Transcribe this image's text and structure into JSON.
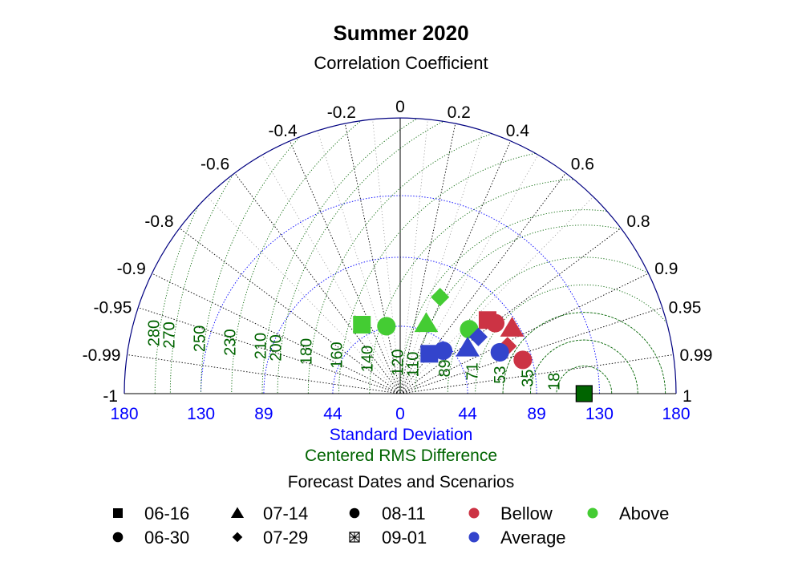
{
  "chart_data": {
    "type": "scatter",
    "subtype": "taylor-diagram",
    "title": "Summer 2020",
    "subtitle": "Correlation Coefficient",
    "xlabel": "Standard Deviation",
    "xlabel2": "Centered RMS Difference",
    "reference": {
      "sd": 120,
      "marker": "square",
      "color": "#006400"
    },
    "sd_ticks": [
      -180,
      -130,
      -89,
      -44,
      0,
      44,
      89,
      130,
      180
    ],
    "sd_tick_labels": [
      "180",
      "130",
      "89",
      "44",
      "0",
      "44",
      "89",
      "130",
      "180"
    ],
    "sd_max": 180,
    "sd_circles": [
      44,
      89,
      130
    ],
    "corr_ticks_left": [
      {
        "v": -0.2,
        "label": "-0.2"
      },
      {
        "v": -0.4,
        "label": "-0.4"
      },
      {
        "v": -0.6,
        "label": "-0.6"
      },
      {
        "v": -0.8,
        "label": "-0.8"
      },
      {
        "v": -0.9,
        "label": "-0.9"
      },
      {
        "v": -0.95,
        "label": "-0.95"
      },
      {
        "v": -0.99,
        "label": "-0.99"
      },
      {
        "v": -1,
        "label": "-1"
      }
    ],
    "corr_ticks_right": [
      {
        "v": 0,
        "label": "0"
      },
      {
        "v": 0.2,
        "label": "0.2"
      },
      {
        "v": 0.4,
        "label": "0.4"
      },
      {
        "v": 0.6,
        "label": "0.6"
      },
      {
        "v": 0.8,
        "label": "0.8"
      },
      {
        "v": 0.9,
        "label": "0.9"
      },
      {
        "v": 0.95,
        "label": "0.95"
      },
      {
        "v": 0.99,
        "label": "0.99"
      },
      {
        "v": 1,
        "label": "1"
      }
    ],
    "rms_labels": [
      {
        "value": 18,
        "label": "18"
      },
      {
        "value": 35,
        "label": "35"
      },
      {
        "value": 53,
        "label": "53"
      },
      {
        "value": 71,
        "label": "71"
      },
      {
        "value": 89,
        "label": "89"
      },
      {
        "value": 110,
        "label": "110"
      },
      {
        "value": 120,
        "label": "120"
      },
      {
        "value": 140,
        "label": "140"
      },
      {
        "value": 160,
        "label": "160"
      },
      {
        "value": 180,
        "label": "180"
      },
      {
        "value": 200,
        "label": "200"
      },
      {
        "value": 210,
        "label": "210"
      },
      {
        "value": 230,
        "label": "230"
      },
      {
        "value": 250,
        "label": "250"
      },
      {
        "value": 270,
        "label": "270"
      },
      {
        "value": 280,
        "label": "280"
      }
    ],
    "points": [
      {
        "date": "06-16",
        "scenario": "Above",
        "marker": "square",
        "x": -25,
        "y": 45
      },
      {
        "date": "06-30",
        "scenario": "Above",
        "marker": "circle",
        "x": -9,
        "y": 44
      },
      {
        "date": "07-14",
        "scenario": "Above",
        "marker": "triangle",
        "x": 17,
        "y": 46
      },
      {
        "date": "07-29",
        "scenario": "Above",
        "marker": "diamond",
        "x": 26,
        "y": 63
      },
      {
        "date": "08-11",
        "scenario": "Above",
        "marker": "circle",
        "x": 45,
        "y": 42
      },
      {
        "date": "06-16",
        "scenario": "Bellow",
        "marker": "square",
        "x": 57,
        "y": 48
      },
      {
        "date": "06-30",
        "scenario": "Bellow",
        "marker": "circle",
        "x": 62,
        "y": 46
      },
      {
        "date": "07-14",
        "scenario": "Bellow",
        "marker": "triangle",
        "x": 73,
        "y": 43
      },
      {
        "date": "07-29",
        "scenario": "Bellow",
        "marker": "diamond",
        "x": 70,
        "y": 31
      },
      {
        "date": "08-11",
        "scenario": "Bellow",
        "marker": "circle",
        "x": 80,
        "y": 22
      },
      {
        "date": "06-16",
        "scenario": "Average",
        "marker": "square",
        "x": 19,
        "y": 26
      },
      {
        "date": "06-30",
        "scenario": "Average",
        "marker": "circle",
        "x": 28,
        "y": 28
      },
      {
        "date": "07-14",
        "scenario": "Average",
        "marker": "triangle",
        "x": 44,
        "y": 30
      },
      {
        "date": "07-29",
        "scenario": "Average",
        "marker": "diamond",
        "x": 51,
        "y": 37
      },
      {
        "date": "08-11",
        "scenario": "Average",
        "marker": "circle",
        "x": 65,
        "y": 27
      }
    ],
    "colors": {
      "Bellow": "#cc3344",
      "Above": "#44cc33",
      "Average": "#3344cc",
      "sd": "#0000ff",
      "rms": "#006400",
      "frame": "#000080"
    },
    "legend": {
      "title": "Forecast Dates and Scenarios",
      "placement": "bottom",
      "dates": [
        {
          "label": "06-16",
          "marker": "square"
        },
        {
          "label": "07-14",
          "marker": "triangle"
        },
        {
          "label": "08-11",
          "marker": "circle"
        },
        {
          "label": "06-30",
          "marker": "circle"
        },
        {
          "label": "07-29",
          "marker": "diamond"
        },
        {
          "label": "09-01",
          "marker": "crossed-square"
        }
      ],
      "scenarios": [
        {
          "label": "Bellow",
          "color": "#cc3344"
        },
        {
          "label": "Above",
          "color": "#44cc33"
        },
        {
          "label": "Average",
          "color": "#3344cc"
        }
      ]
    }
  }
}
